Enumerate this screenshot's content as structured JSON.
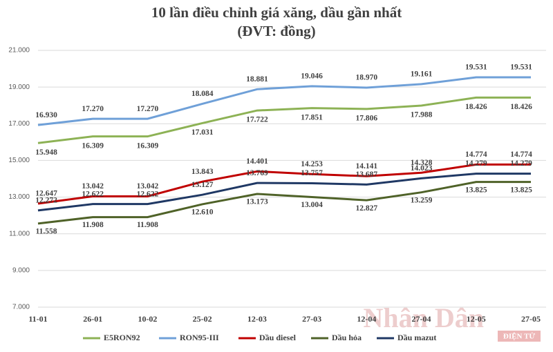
{
  "chart_data": {
    "type": "line",
    "title": "10 lần điều chỉnh giá xăng, dầu gần nhất",
    "subtitle": "(ĐVT: đồng)",
    "watermark": "Nhân Dân",
    "watermark_sub": "ĐIỆN TỬ",
    "categories": [
      "11-01",
      "26-01",
      "10-02",
      "25-02",
      "12-03",
      "27-03",
      "12-04",
      "27-04",
      "12-05",
      "27-05"
    ],
    "ylim": [
      7000,
      21000
    ],
    "yticks": [
      {
        "value": 7000,
        "label": "7.000"
      },
      {
        "value": 9000,
        "label": "9.000"
      },
      {
        "value": 11000,
        "label": "11.000"
      },
      {
        "value": 13000,
        "label": "13.000"
      },
      {
        "value": 15000,
        "label": "15.000"
      },
      {
        "value": 17000,
        "label": "17.000"
      },
      {
        "value": 19000,
        "label": "19.000"
      },
      {
        "value": 21000,
        "label": "21.000"
      }
    ],
    "grid": true,
    "legend": "bottom",
    "series": [
      {
        "name": "E5RON92",
        "color": "#8db255",
        "values": [
          15948,
          16309,
          16309,
          17031,
          17722,
          17851,
          17806,
          17988,
          18426,
          18426
        ],
        "value_labels": [
          "15.948",
          "16.309",
          "16.309",
          "17.031",
          "17.722",
          "17.851",
          "17.806",
          "17.988",
          "18.426",
          "18.426"
        ]
      },
      {
        "name": "RON95-III",
        "color": "#6fa0d8",
        "values": [
          16930,
          17270,
          17270,
          18084,
          18881,
          19046,
          18970,
          19161,
          19531,
          19531
        ],
        "value_labels": [
          "16.930",
          "17.270",
          "17.270",
          "18.084",
          "18.881",
          "19.046",
          "18.970",
          "19.161",
          "19.531",
          "19.531"
        ]
      },
      {
        "name": "Dầu diesel",
        "color": "#c00000",
        "values": [
          12647,
          13042,
          13042,
          13843,
          14401,
          14253,
          14141,
          14328,
          14774,
          14774
        ],
        "value_labels": [
          "12.647",
          "13.042",
          "13.042",
          "13.843",
          "14.401",
          "14.253",
          "14.141",
          "14.328",
          "14.774",
          "14.774"
        ]
      },
      {
        "name": "Dầu hỏa",
        "color": "#4f6228",
        "values": [
          11558,
          11908,
          11908,
          12610,
          13173,
          13004,
          12827,
          13259,
          13825,
          13825
        ],
        "value_labels": [
          "11.558",
          "11.908",
          "11.908",
          "12.610",
          "13.173",
          "13.004",
          "12.827",
          "13.259",
          "13.825",
          "13.825"
        ]
      },
      {
        "name": "Dầu mazut",
        "color": "#1f3864",
        "values": [
          12272,
          12622,
          12622,
          13127,
          13769,
          13757,
          13687,
          14023,
          14279,
          14279
        ],
        "value_labels": [
          "12.272",
          "12.622",
          "12.622",
          "13.127",
          "13.769",
          "13.757",
          "13.687",
          "14.023",
          "14.279",
          "14.279"
        ]
      }
    ]
  }
}
